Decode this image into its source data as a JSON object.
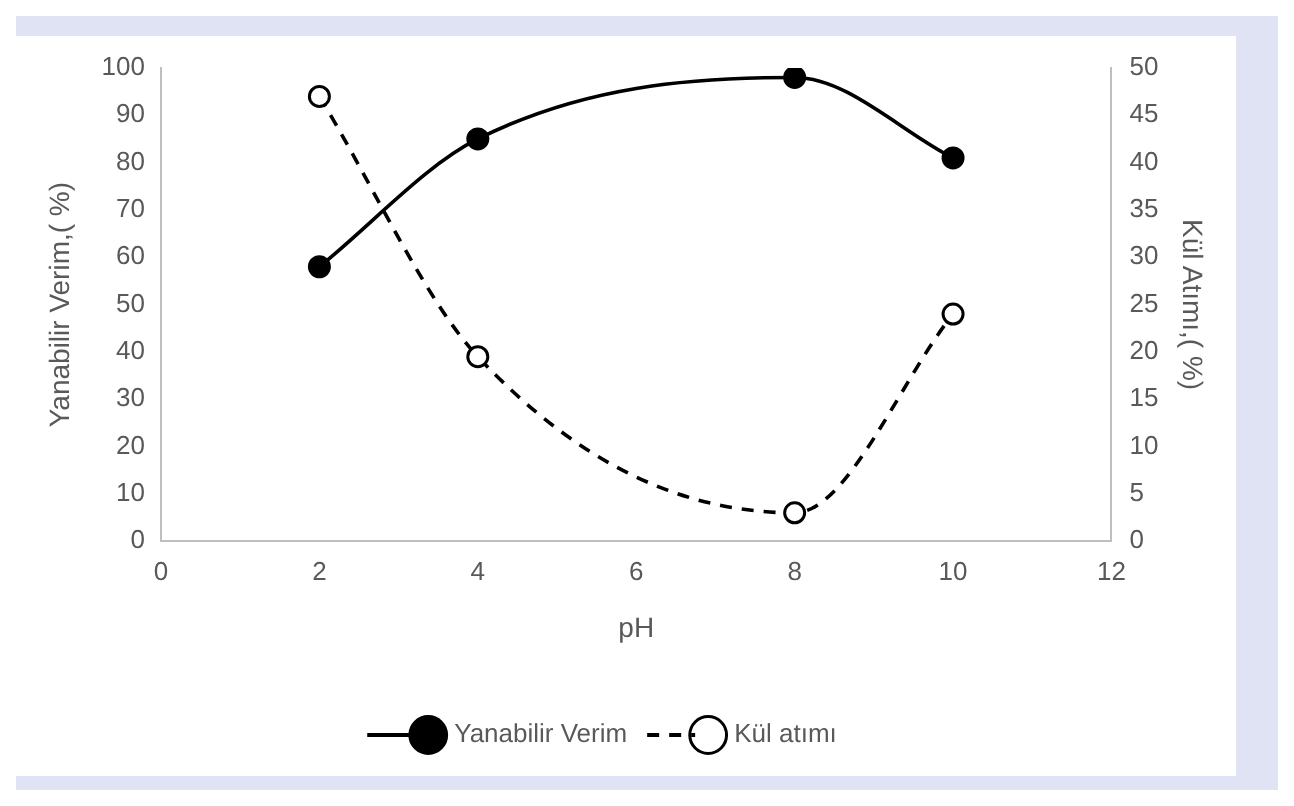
{
  "chart_data": {
    "type": "line",
    "xlabel": "pH",
    "ylabel": "Yanabilir Verim,( %)",
    "y2label": "Kül Atımı,( %)",
    "x": [
      2,
      4,
      8,
      10
    ],
    "series": [
      {
        "name": "Yanabilir Verim",
        "color": "#000000",
        "values": [
          58,
          85,
          98,
          81
        ],
        "line_style": "solid"
      },
      {
        "name": "Kül atımı",
        "color": "#000000",
        "values": [
          47,
          19.5,
          3,
          24
        ],
        "line_style": "dashed",
        "axis": "y2"
      }
    ],
    "xlim": [
      0,
      12
    ],
    "xticks": [
      0,
      2,
      4,
      6,
      8,
      10,
      12
    ],
    "ylim": [
      0,
      100
    ],
    "yticks": [
      0,
      10,
      20,
      30,
      40,
      50,
      60,
      70,
      80,
      90,
      100
    ],
    "y2lim": [
      0,
      50
    ],
    "y2ticks": [
      0,
      5,
      10,
      15,
      20,
      25,
      30,
      35,
      40,
      45,
      50
    ],
    "grid": false,
    "legend": "bottom",
    "marker": "circle"
  }
}
